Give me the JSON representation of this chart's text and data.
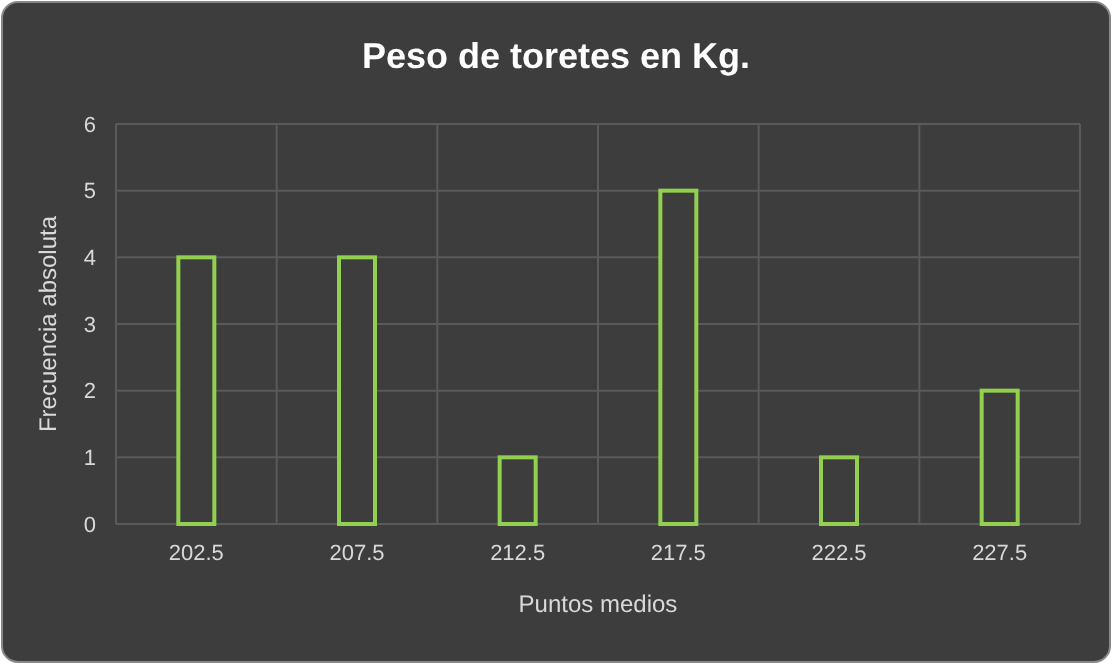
{
  "chart_data": {
    "type": "bar",
    "title": "Peso de toretes en Kg.",
    "xlabel": "Puntos medios",
    "ylabel": "Frecuencia absoluta",
    "categories": [
      "202.5",
      "207.5",
      "212.5",
      "217.5",
      "222.5",
      "227.5"
    ],
    "values": [
      4,
      4,
      1,
      5,
      1,
      2
    ],
    "color": "#92d050",
    "ylim": [
      0,
      6
    ],
    "yticks": [
      0,
      1,
      2,
      3,
      4,
      5,
      6
    ],
    "grid": true
  }
}
